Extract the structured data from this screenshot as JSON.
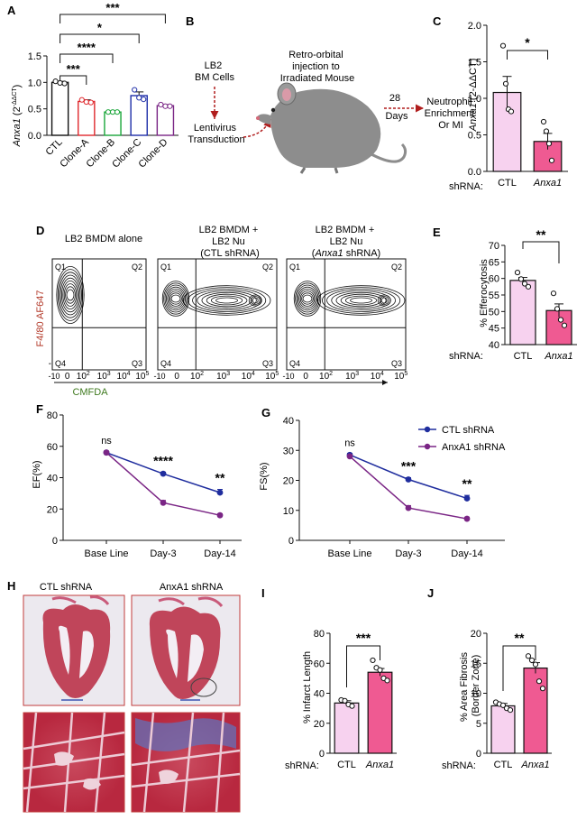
{
  "colors": {
    "ctl_pink": "#f7d2ef",
    "anxa1_pink": "#ef5a92",
    "clone_a": "#e0282d",
    "clone_b": "#1aa63a",
    "clone_c": "#1e2ea8",
    "clone_d": "#7a2585",
    "line_ctl": "#1f2d9e",
    "line_anxa1": "#7a2585",
    "flow_y": "#b33a2a",
    "flow_x": "#3f7a1f",
    "arrow_red": "#b01d1d",
    "mouse": "#8d8d8d"
  },
  "panels": {
    "A": {
      "letter": "A",
      "ylabel_gene": "Anxa1",
      "ylabel_sup": "(2",
      "ylabel_sup2": "-ΔΔCT",
      "ylabel_end": ")",
      "sig": [
        "***",
        "*",
        "****",
        "***",
        "***"
      ]
    },
    "B": {
      "letter": "B",
      "cells": "LB2",
      "cells2": "BM Cells",
      "transduction": "Lentivirus",
      "transduction2": "Transduction",
      "injection": "Retro-orbital",
      "injection2": "injection to",
      "injection3": "Irradiated Mouse",
      "days_n": "28",
      "days": "Days",
      "outcome": "Neutrophil",
      "outcome2": "Enrichment",
      "outcome3": "Or MI"
    },
    "C": {
      "letter": "C",
      "ylabel_gene": "Anxa1",
      "ylabel_rest": "(2-ΔΔCT)",
      "sig": "*",
      "shrna": "shRNA:"
    },
    "D": {
      "letter": "D",
      "title1": "LB2 BMDM alone",
      "title2a": "LB2 BMDM +",
      "title2b": "LB2 Nu",
      "title2c": "(CTL shRNA)",
      "title3a": "LB2 BMDM +",
      "title3b": "LB2 Nu",
      "title3c_open": "(",
      "title3c_gene": "Anxa1",
      "title3c_close": " shRNA)",
      "ylabel": "F4/80 AF647",
      "xlabel": "CMFDA",
      "quadrants": [
        "Q1",
        "Q2",
        "Q3",
        "Q4"
      ],
      "yticks": [
        "10",
        "10",
        "10",
        "10",
        "0",
        "-10"
      ],
      "yexp": [
        "5",
        "4",
        "3",
        "2",
        "",
        "3"
      ],
      "xticks": [
        "0",
        "10",
        "10",
        "10",
        "10"
      ],
      "xexp": [
        "",
        "2",
        "3",
        "4",
        "5"
      ],
      "xneg": "-10",
      "xnegexp": "3"
    },
    "E": {
      "letter": "E",
      "ylabel": "% Efferocytosis",
      "sig": "**",
      "shrna": "shRNA:"
    },
    "F": {
      "letter": "F",
      "ylabel": "EF(%)",
      "sig": [
        "ns",
        "****",
        "**"
      ]
    },
    "G": {
      "letter": "G",
      "ylabel": "FS(%)",
      "sig": [
        "ns",
        "***",
        "**"
      ],
      "legend": [
        "CTL shRNA",
        "AnxA1 shRNA"
      ]
    },
    "H": {
      "letter": "H",
      "title_left": "CTL shRNA",
      "title_right": "AnxA1 shRNA"
    },
    "I": {
      "letter": "I",
      "ylabel": "% Infarct Length",
      "sig": "***",
      "shrna": "shRNA:"
    },
    "J": {
      "letter": "J",
      "ylabel": "% Area Fibrosis",
      "ylabel2": "(Border Zone)",
      "sig": "**",
      "shrna": "shRNA:"
    }
  },
  "chart_data": [
    {
      "panel": "A",
      "type": "bar",
      "categories": [
        "CTL",
        "Clone-A",
        "Clone-B",
        "Clone-C",
        "Clone-D"
      ],
      "values": [
        1.0,
        0.64,
        0.44,
        0.75,
        0.56
      ],
      "errors": [
        0.02,
        0.03,
        0.01,
        0.07,
        0.02
      ],
      "points": [
        [
          1.02,
          0.99,
          0.98
        ],
        [
          0.67,
          0.63,
          0.62
        ],
        [
          0.44,
          0.44,
          0.44
        ],
        [
          0.86,
          0.71,
          0.68
        ],
        [
          0.58,
          0.55,
          0.55
        ]
      ],
      "ylim": [
        0,
        1.5
      ],
      "yticks": [
        0.0,
        0.5,
        1.0,
        1.5
      ]
    },
    {
      "panel": "C",
      "type": "bar",
      "categories": [
        "CTL",
        "Anxa1"
      ],
      "values": [
        1.08,
        0.41
      ],
      "errors": [
        0.22,
        0.11
      ],
      "points": [
        [
          1.72,
          1.2,
          0.85,
          0.82
        ],
        [
          0.68,
          0.55,
          0.38,
          0.15
        ]
      ],
      "ylim": [
        0,
        2.0
      ],
      "yticks": [
        0.0,
        0.5,
        1.0,
        1.5,
        2.0
      ]
    },
    {
      "panel": "E",
      "type": "bar",
      "categories": [
        "CTL",
        "Anxa1"
      ],
      "values": [
        59.4,
        50.3
      ],
      "errors": [
        0.9,
        2.0
      ],
      "points": [
        [
          61.8,
          59.8,
          58.4,
          57.5
        ],
        [
          55.5,
          50.8,
          47.5,
          45.8
        ]
      ],
      "ylim": [
        40,
        70
      ],
      "yticks": [
        40,
        45,
        50,
        55,
        60,
        65,
        70
      ]
    },
    {
      "panel": "F",
      "type": "line",
      "categories": [
        "Base Line",
        "Day-3",
        "Day-14"
      ],
      "series": [
        {
          "name": "CTL shRNA",
          "values": [
            56,
            42.5,
            30.5
          ],
          "errors": [
            1,
            1,
            2
          ]
        },
        {
          "name": "AnxA1 shRNA",
          "values": [
            56,
            24,
            16
          ],
          "errors": [
            1,
            1.5,
            1
          ]
        }
      ],
      "ylim": [
        0,
        80
      ],
      "yticks": [
        0,
        20,
        40,
        60,
        80
      ]
    },
    {
      "panel": "G",
      "type": "line",
      "categories": [
        "Base Line",
        "Day-3",
        "Day-14"
      ],
      "series": [
        {
          "name": "CTL shRNA",
          "values": [
            28.5,
            20.3,
            14
          ],
          "errors": [
            0.5,
            0.6,
            1
          ]
        },
        {
          "name": "AnxA1 shRNA",
          "values": [
            28,
            10.8,
            7.2
          ],
          "errors": [
            0.5,
            0.8,
            0.5
          ]
        }
      ],
      "ylim": [
        0,
        40
      ],
      "yticks": [
        0,
        10,
        20,
        30,
        40
      ]
    },
    {
      "panel": "I",
      "type": "bar",
      "categories": [
        "CTL",
        "Anxa1"
      ],
      "values": [
        33.5,
        54
      ],
      "errors": [
        1.5,
        2.5
      ],
      "points": [
        [
          35.5,
          35,
          32.5,
          31.5
        ],
        [
          62,
          57,
          55.5,
          50,
          48.5
        ]
      ],
      "ylim": [
        0,
        80
      ],
      "yticks": [
        0,
        20,
        40,
        60,
        80
      ]
    },
    {
      "panel": "J",
      "type": "bar",
      "categories": [
        "CTL",
        "Anxa1"
      ],
      "values": [
        7.9,
        14.2
      ],
      "errors": [
        0.4,
        0.9
      ],
      "points": [
        [
          8.5,
          8.2,
          8.0,
          7.5,
          7.2
        ],
        [
          16.2,
          15.5,
          14.8,
          12,
          10.8
        ]
      ],
      "ylim": [
        0,
        20
      ],
      "yticks": [
        0,
        5,
        10,
        15,
        20
      ]
    }
  ]
}
